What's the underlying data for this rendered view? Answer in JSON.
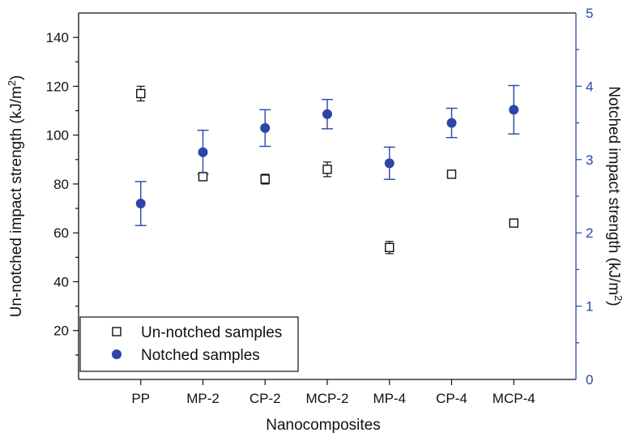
{
  "chart_data": {
    "type": "scatter",
    "categories": [
      "PP",
      "MP-2",
      "CP-2",
      "MCP-2",
      "MP-4",
      "CP-4",
      "MCP-4"
    ],
    "xlabel": "Nanocomposites",
    "ylabel_left": "Un-notched impact strength (kJ/m²)",
    "ylabel_right": "Notched impact strength (kJ/m²)",
    "ylim_left": [
      0,
      150
    ],
    "ylim_right": [
      0,
      5
    ],
    "yticks_left": [
      20,
      40,
      60,
      80,
      100,
      120,
      140
    ],
    "yticks_right": [
      0,
      1,
      2,
      3,
      4,
      5
    ],
    "grid": false,
    "legend_position": "bottom-left",
    "colors": {
      "unnotched": "#111111",
      "notched": "#2b45a8",
      "right_axis": "#2b45a8"
    },
    "series": [
      {
        "name": "Un-notched samples",
        "axis": "left",
        "marker": "open-square",
        "values": [
          117,
          83,
          82,
          86,
          54,
          84,
          64
        ],
        "errors": [
          3,
          1.5,
          2,
          3,
          2.5,
          1,
          1
        ]
      },
      {
        "name": "Notched samples",
        "axis": "right",
        "marker": "filled-circle",
        "values": [
          2.4,
          3.1,
          3.43,
          3.62,
          2.95,
          3.5,
          3.68
        ],
        "errors": [
          0.3,
          0.3,
          0.25,
          0.2,
          0.22,
          0.2,
          0.33
        ]
      }
    ]
  }
}
